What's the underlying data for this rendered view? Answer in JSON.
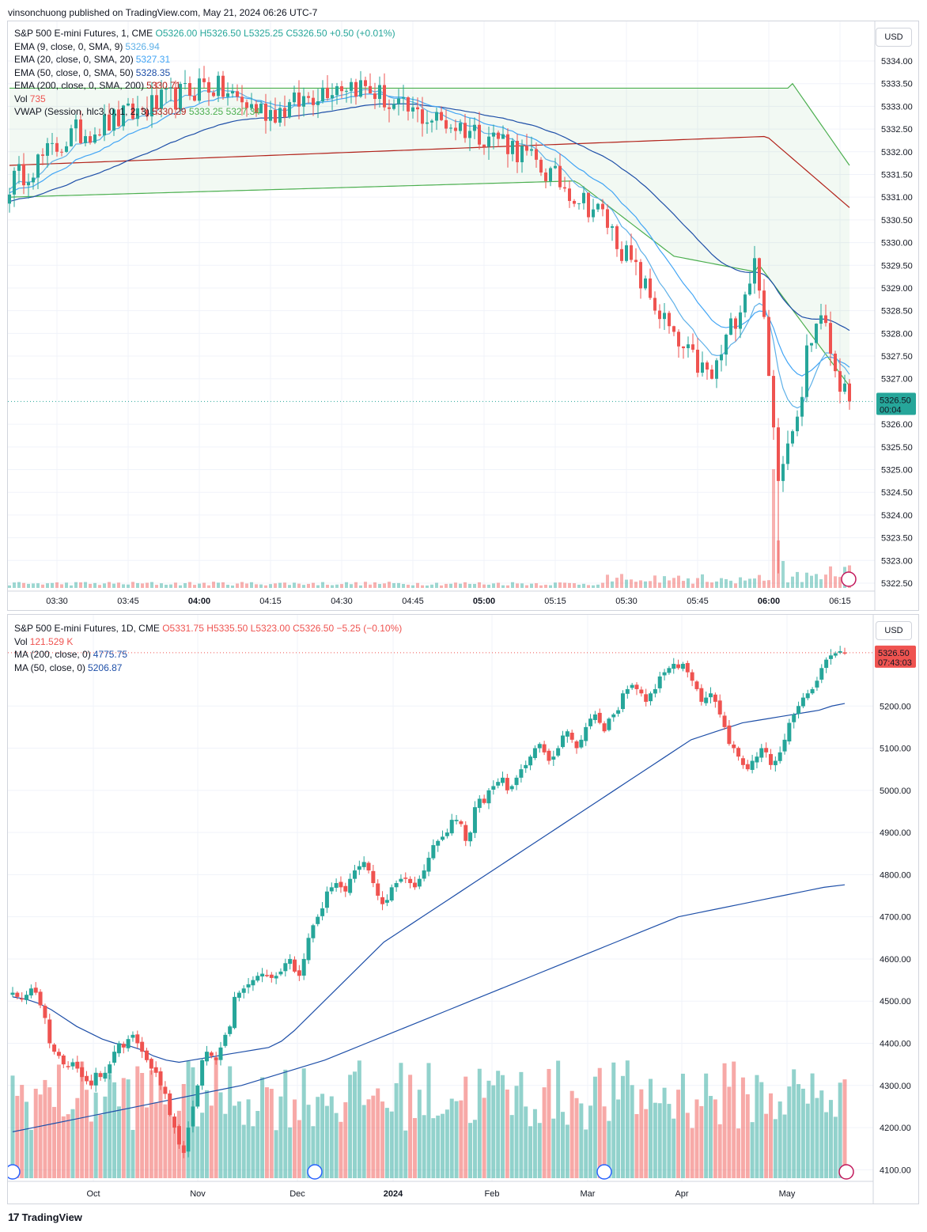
{
  "header": {
    "text": "vinsonchuong published on TradingView.com, May 21, 2024 06:26 UTC-7"
  },
  "footer": {
    "brand": "TradingView"
  },
  "colors": {
    "up": "#26a69a",
    "down": "#ef5350",
    "ema9": "#5fb1e8",
    "ema20": "#42a5f5",
    "ema50": "#1e4fa8",
    "ema200": "#b2221a",
    "vwap": "#4caf50",
    "grid": "#f0f3fa"
  },
  "chart_data": [
    {
      "type": "candlestick",
      "legend": {
        "symbol": "S&P 500 E-mini Futures, 1, CME",
        "ohlc": {
          "o": "5326.00",
          "h": "5326.50",
          "l": "5325.25",
          "c": "5326.50",
          "chg": "+0.50 (+0.01%)"
        },
        "indicators": [
          {
            "label": "EMA (9, close, 0, SMA, 9)",
            "value": "5326.94",
            "color": "#5fb1e8"
          },
          {
            "label": "EMA (20, close, 0, SMA, 20)",
            "value": "5327.31",
            "color": "#42a5f5"
          },
          {
            "label": "EMA (50, close, 0, SMA, 50)",
            "value": "5328.35",
            "color": "#1e4fa8"
          },
          {
            "label": "EMA (200, close, 0, SMA, 200)",
            "value": "5330.71",
            "color": "#b2221a"
          },
          {
            "label": "Vol",
            "value": "735",
            "color": "#ef5350"
          }
        ],
        "vwap": {
          "label": "VWAP (Session, hlc3, 0, 1, 2, 3)",
          "v1": "5330.29",
          "v2": "5333.25",
          "v3": "5327.34"
        }
      },
      "currency": "USD",
      "price_label": {
        "price": "5326.50",
        "timer": "00:04"
      },
      "y_ticks": [
        "5334.00",
        "5333.50",
        "5333.00",
        "5332.50",
        "5332.00",
        "5331.50",
        "5331.00",
        "5330.50",
        "5330.00",
        "5329.50",
        "5329.00",
        "5328.50",
        "5328.00",
        "5327.50",
        "5327.00",
        "5326.00",
        "5325.50",
        "5325.00",
        "5324.50",
        "5324.00",
        "5323.50",
        "5323.00",
        "5322.50"
      ],
      "ylim": [
        5322.5,
        5334.0
      ],
      "x_ticks": [
        {
          "label": "03:30",
          "bold": false,
          "idx": 10
        },
        {
          "label": "03:45",
          "bold": false,
          "idx": 25
        },
        {
          "label": "04:00",
          "bold": true,
          "idx": 40
        },
        {
          "label": "04:15",
          "bold": false,
          "idx": 55
        },
        {
          "label": "04:30",
          "bold": false,
          "idx": 70
        },
        {
          "label": "04:45",
          "bold": false,
          "idx": 85
        },
        {
          "label": "05:00",
          "bold": true,
          "idx": 100
        },
        {
          "label": "05:15",
          "bold": false,
          "idx": 115
        },
        {
          "label": "05:30",
          "bold": false,
          "idx": 130
        },
        {
          "label": "05:45",
          "bold": false,
          "idx": 145
        },
        {
          "label": "06:00",
          "bold": true,
          "idx": 160
        },
        {
          "label": "06:15",
          "bold": false,
          "idx": 175
        }
      ],
      "bars_count": 178
    },
    {
      "type": "candlestick",
      "legend": {
        "symbol": "S&P 500 E-mini Futures, 1D, CME",
        "ohlc": {
          "o": "5331.75",
          "h": "5335.50",
          "l": "5323.00",
          "c": "5326.50",
          "chg": "−5.25 (−0.10%)"
        },
        "indicators": [
          {
            "label": "Vol",
            "value": "121.529 K",
            "color": "#ef5350"
          },
          {
            "label": "MA (200, close, 0)",
            "value": "4775.75",
            "color": "#1e4fa8"
          },
          {
            "label": "MA (50, close, 0)",
            "value": "5206.87",
            "color": "#1e4fa8"
          }
        ]
      },
      "currency": "USD",
      "price_label": {
        "price": "5326.50",
        "timer": "07:43:03"
      },
      "y_ticks": [
        "5200.00",
        "5100.00",
        "5000.00",
        "4900.00",
        "4800.00",
        "4700.00",
        "4600.00",
        "4500.00",
        "4400.00",
        "4300.00",
        "4200.00",
        "4100.00"
      ],
      "ylim": [
        4080,
        5360
      ],
      "x_ticks": [
        {
          "label": "Oct",
          "bold": false,
          "x": 108
        },
        {
          "label": "Nov",
          "bold": false,
          "x": 240
        },
        {
          "label": "Dec",
          "bold": false,
          "x": 366
        },
        {
          "label": "2024",
          "bold": true,
          "x": 487
        },
        {
          "label": "Feb",
          "bold": false,
          "x": 612
        },
        {
          "label": "Mar",
          "bold": false,
          "x": 733
        },
        {
          "label": "Apr",
          "bold": false,
          "x": 852
        },
        {
          "label": "May",
          "bold": false,
          "x": 985
        }
      ],
      "close_path": [
        4520,
        4510,
        4505,
        4515,
        4530,
        4520,
        4490,
        4460,
        4400,
        4380,
        4370,
        4350,
        4345,
        4355,
        4340,
        4320,
        4310,
        4300,
        4330,
        4320,
        4330,
        4350,
        4380,
        4400,
        4390,
        4410,
        4420,
        4400,
        4380,
        4360,
        4340,
        4330,
        4300,
        4280,
        4230,
        4200,
        4160,
        4140,
        4200,
        4250,
        4300,
        4360,
        4380,
        4370,
        4360,
        4390,
        4420,
        4440,
        4510,
        4520,
        4530,
        4540,
        4550,
        4560,
        4565,
        4560,
        4555,
        4560,
        4570,
        4590,
        4600,
        4570,
        4560,
        4600,
        4650,
        4680,
        4700,
        4720,
        4760,
        4770,
        4780,
        4770,
        4760,
        4790,
        4810,
        4820,
        4830,
        4810,
        4780,
        4750,
        4730,
        4740,
        4770,
        4780,
        4790,
        4790,
        4780,
        4770,
        4790,
        4810,
        4840,
        4870,
        4880,
        4890,
        4900,
        4930,
        4930,
        4920,
        4880,
        4900,
        4960,
        4980,
        4970,
        5000,
        5010,
        5020,
        5030,
        5000,
        5010,
        5030,
        5050,
        5060,
        5080,
        5100,
        5110,
        5090,
        5070,
        5080,
        5100,
        5130,
        5140,
        5120,
        5100,
        5120,
        5150,
        5170,
        5180,
        5160,
        5140,
        5170,
        5180,
        5190,
        5230,
        5240,
        5250,
        5240,
        5230,
        5210,
        5230,
        5240,
        5270,
        5280,
        5290,
        5300,
        5290,
        5300,
        5280,
        5260,
        5240,
        5210,
        5220,
        5230,
        5210,
        5180,
        5150,
        5110,
        5100,
        5080,
        5060,
        5050,
        5070,
        5080,
        5100,
        5090,
        5060,
        5070,
        5090,
        5120,
        5160,
        5180,
        5200,
        5220,
        5230,
        5240,
        5260,
        5290,
        5310,
        5320,
        5325,
        5330,
        5326
      ],
      "ma50_path": [
        4510,
        4505,
        4495,
        4480,
        4460,
        4440,
        4425,
        4410,
        4400,
        4395,
        4385,
        4370,
        4360,
        4355,
        4360,
        4365,
        4370,
        4375,
        4380,
        4385,
        4390,
        4405,
        4430,
        4460,
        4490,
        4520,
        4550,
        4580,
        4610,
        4640,
        4660,
        4680,
        4700,
        4720,
        4740,
        4760,
        4780,
        4800,
        4820,
        4840,
        4860,
        4880,
        4900,
        4920,
        4940,
        4960,
        4980,
        5000,
        5020,
        5040,
        5060,
        5080,
        5100,
        5120,
        5130,
        5140,
        5150,
        5160,
        5165,
        5170,
        5175,
        5180,
        5185,
        5190,
        5200,
        5206
      ],
      "ma200_path": [
        4190,
        4200,
        4210,
        4220,
        4230,
        4240,
        4250,
        4260,
        4270,
        4280,
        4290,
        4300,
        4315,
        4330,
        4345,
        4360,
        4380,
        4400,
        4420,
        4440,
        4460,
        4480,
        4500,
        4520,
        4540,
        4560,
        4580,
        4600,
        4620,
        4640,
        4660,
        4680,
        4700,
        4710,
        4720,
        4730,
        4740,
        4750,
        4760,
        4770,
        4776
      ]
    }
  ]
}
